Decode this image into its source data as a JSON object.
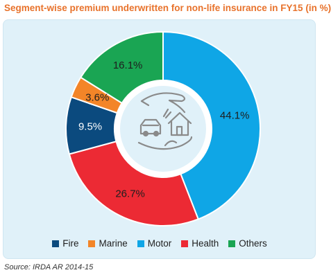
{
  "title": "Segment-wise premium underwritten for non-life insurance in FY15 (in %)",
  "source": "Source: IRDA AR 2014-15",
  "chart_data": {
    "type": "pie",
    "style": "donut",
    "categories": [
      "Motor",
      "Health",
      "Fire",
      "Marine",
      "Others"
    ],
    "values": [
      44.1,
      26.7,
      9.5,
      3.6,
      16.1
    ],
    "labels": [
      "44.1%",
      "26.7%",
      "9.5%",
      "3.6%",
      "16.1%"
    ],
    "colors": [
      "#0fa6e6",
      "#ec2a34",
      "#0b4a7e",
      "#f38528",
      "#1aa553"
    ],
    "legend_order": [
      "Fire",
      "Marine",
      "Motor",
      "Health",
      "Others"
    ],
    "legend_colors": [
      "#0b4a7e",
      "#f38528",
      "#0fa6e6",
      "#ec2a34",
      "#1aa553"
    ],
    "legend_position": "bottom",
    "center_icon": "hand-protecting-car-and-house-icon"
  }
}
